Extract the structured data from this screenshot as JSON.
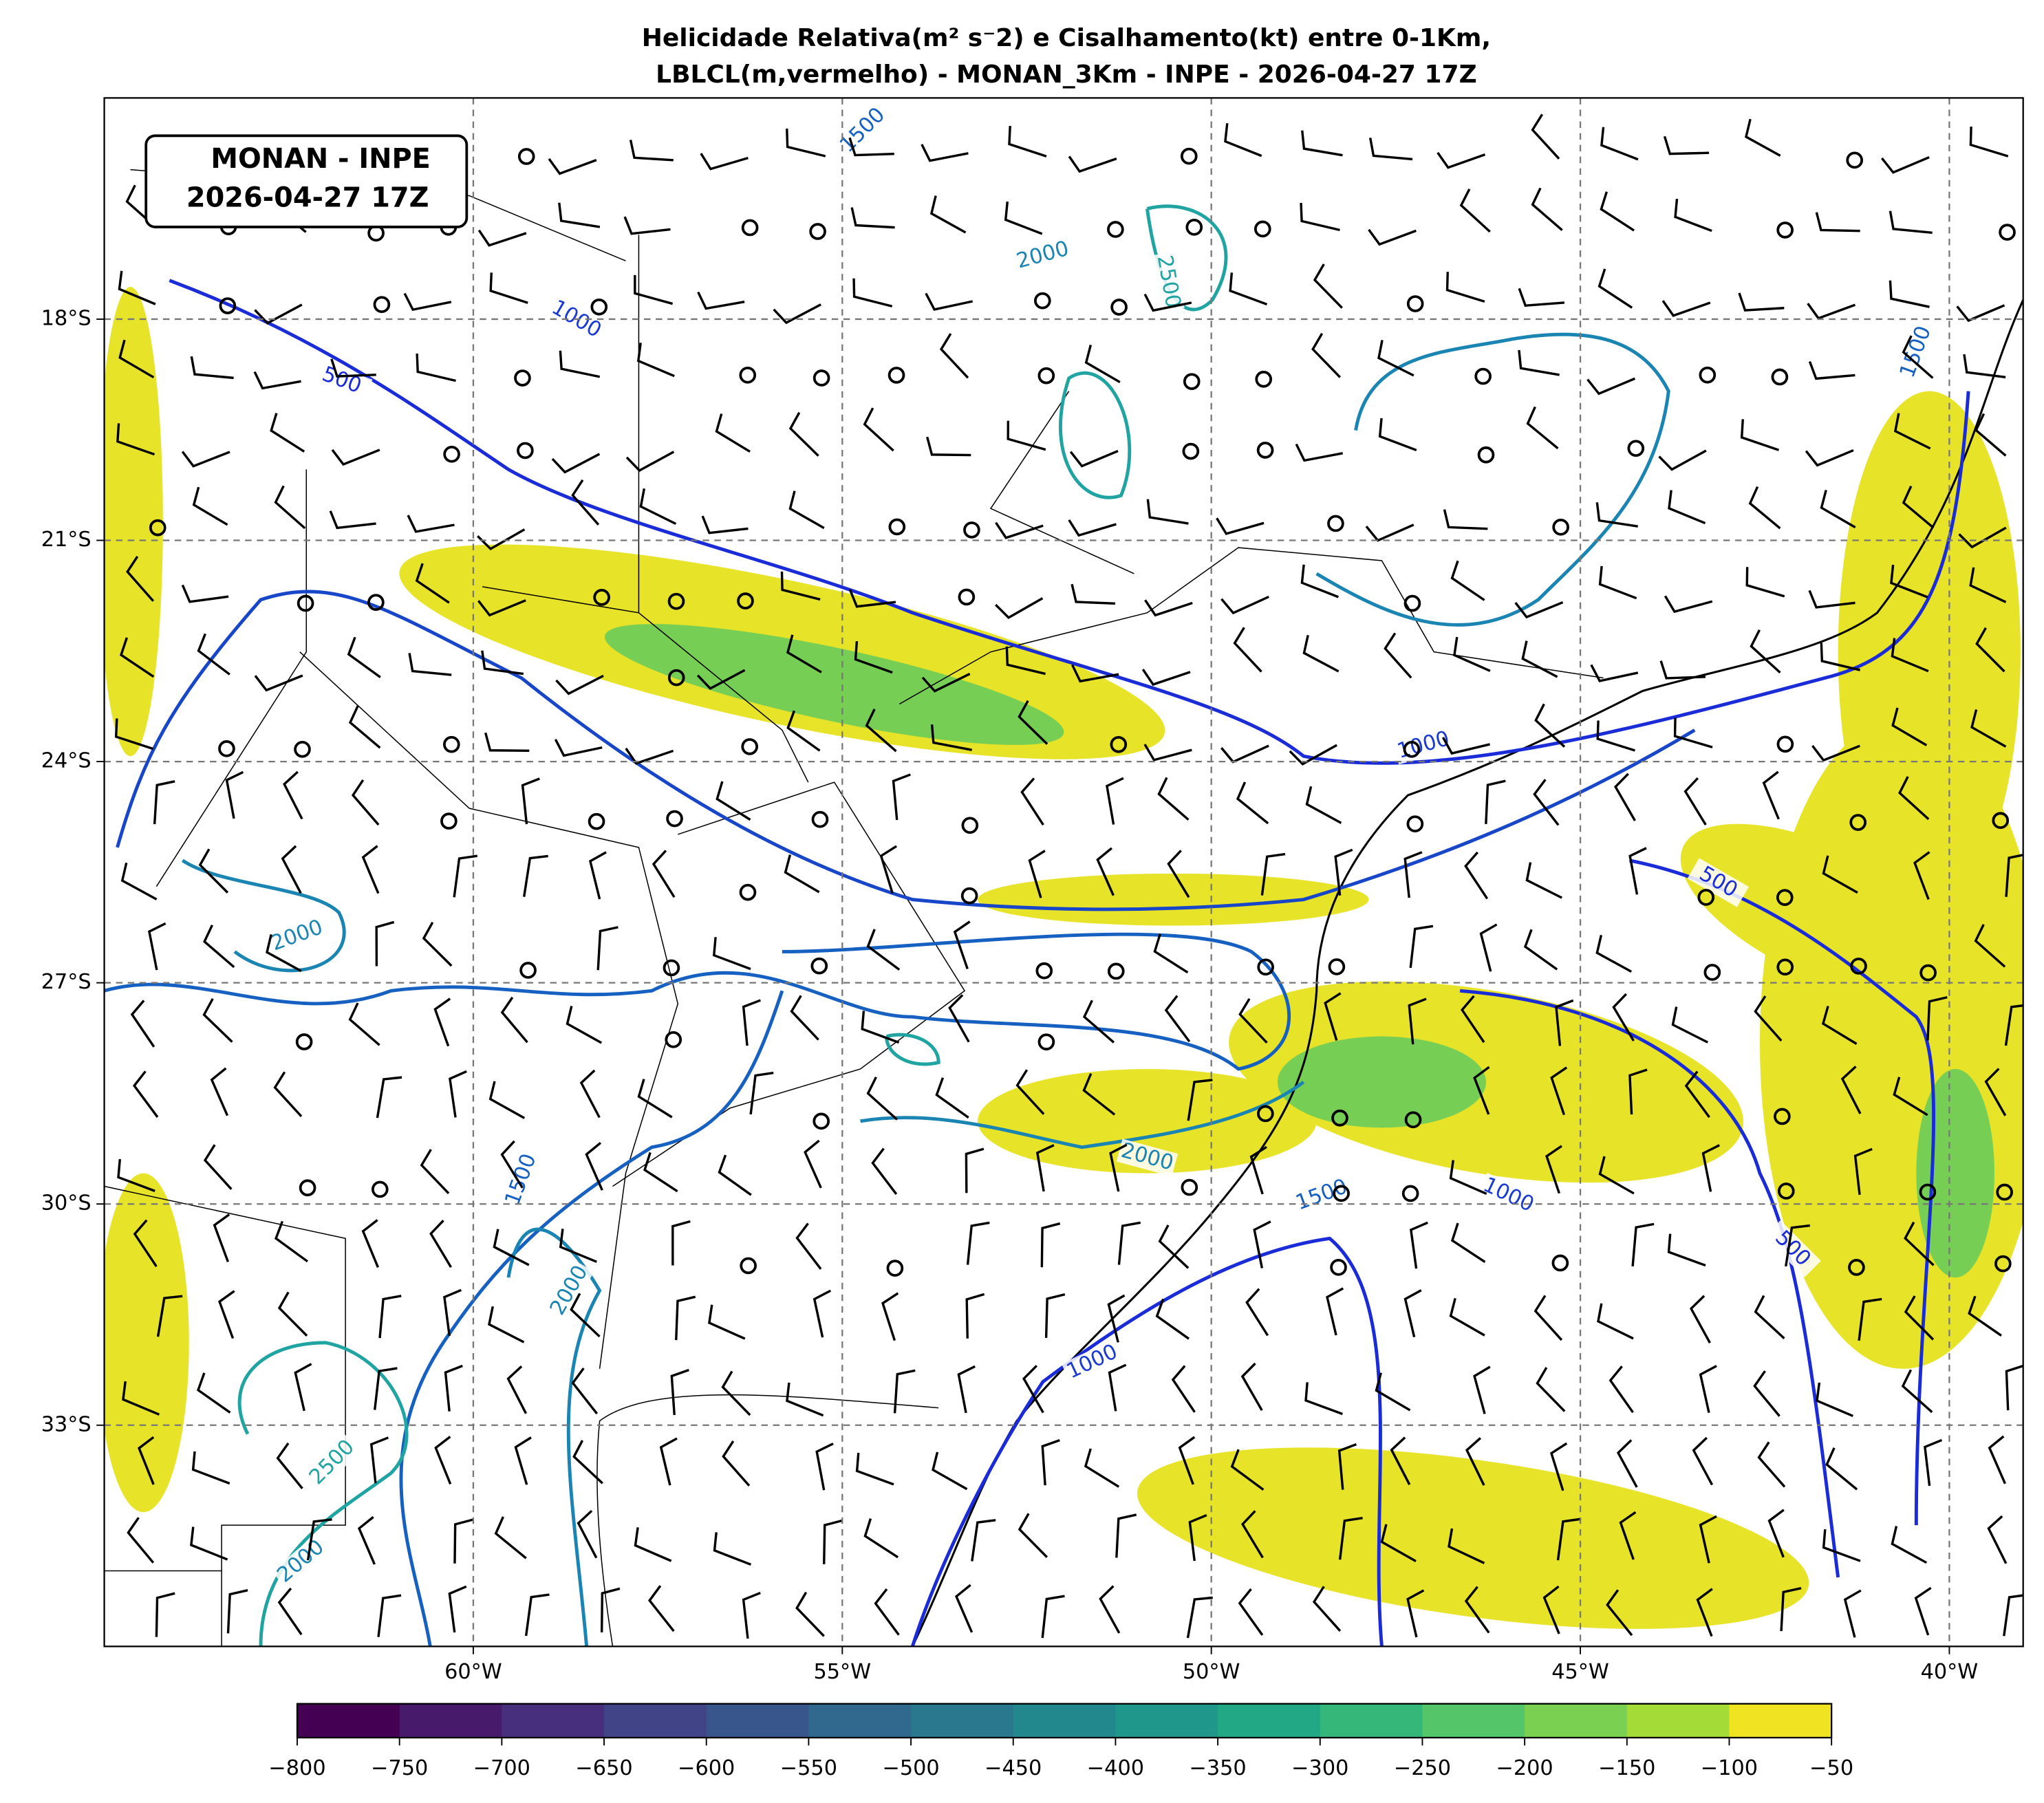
{
  "header": {
    "title_line1": "Helicidade Relativa(m² s⁻2) e Cisalhamento(kt) entre 0-1Km,",
    "title_line2": "LBLCL(m,vermelho) - MONAN_3Km - INPE - 2026-04-27 17Z"
  },
  "annotation": {
    "line1": "MONAN - INPE",
    "line2": "2026-04-27 17Z"
  },
  "map": {
    "lonlim": [
      -65,
      -39
    ],
    "latlim": [
      -36,
      -15
    ],
    "lonticks": [
      {
        "value": -60,
        "label": "60°W"
      },
      {
        "value": -55,
        "label": "55°W"
      },
      {
        "value": -50,
        "label": "50°W"
      },
      {
        "value": -45,
        "label": "45°W"
      },
      {
        "value": -40,
        "label": "40°W"
      }
    ],
    "latticks": [
      {
        "value": -18,
        "label": "18°S"
      },
      {
        "value": -21,
        "label": "21°S"
      },
      {
        "value": -24,
        "label": "24°S"
      },
      {
        "value": -27,
        "label": "27°S"
      },
      {
        "value": -30,
        "label": "30°S"
      },
      {
        "value": -33,
        "label": "33°S"
      }
    ],
    "grid": true
  },
  "contours": {
    "levels": [
      500,
      1000,
      1500,
      2000,
      2500
    ]
  },
  "colorbar": {
    "lim": [
      -800,
      -50
    ],
    "ticks": [
      {
        "value": -800,
        "label": "−800"
      },
      {
        "value": -750,
        "label": "−750"
      },
      {
        "value": -700,
        "label": "−700"
      },
      {
        "value": -650,
        "label": "−650"
      },
      {
        "value": -600,
        "label": "−600"
      },
      {
        "value": -550,
        "label": "−550"
      },
      {
        "value": -500,
        "label": "−500"
      },
      {
        "value": -450,
        "label": "−450"
      },
      {
        "value": -400,
        "label": "−400"
      },
      {
        "value": -350,
        "label": "−350"
      },
      {
        "value": -300,
        "label": "−300"
      },
      {
        "value": -250,
        "label": "−250"
      },
      {
        "value": -200,
        "label": "−200"
      },
      {
        "value": -150,
        "label": "−150"
      },
      {
        "value": -100,
        "label": "−100"
      },
      {
        "value": -50,
        "label": "−50"
      }
    ],
    "colors": [
      "#440154",
      "#481a6c",
      "#472f7d",
      "#414487",
      "#39568c",
      "#31688e",
      "#2a788e",
      "#23888e",
      "#1f988b",
      "#22a884",
      "#35b779",
      "#54c568",
      "#7ad151",
      "#a5db36",
      "#f0e422"
    ]
  }
}
